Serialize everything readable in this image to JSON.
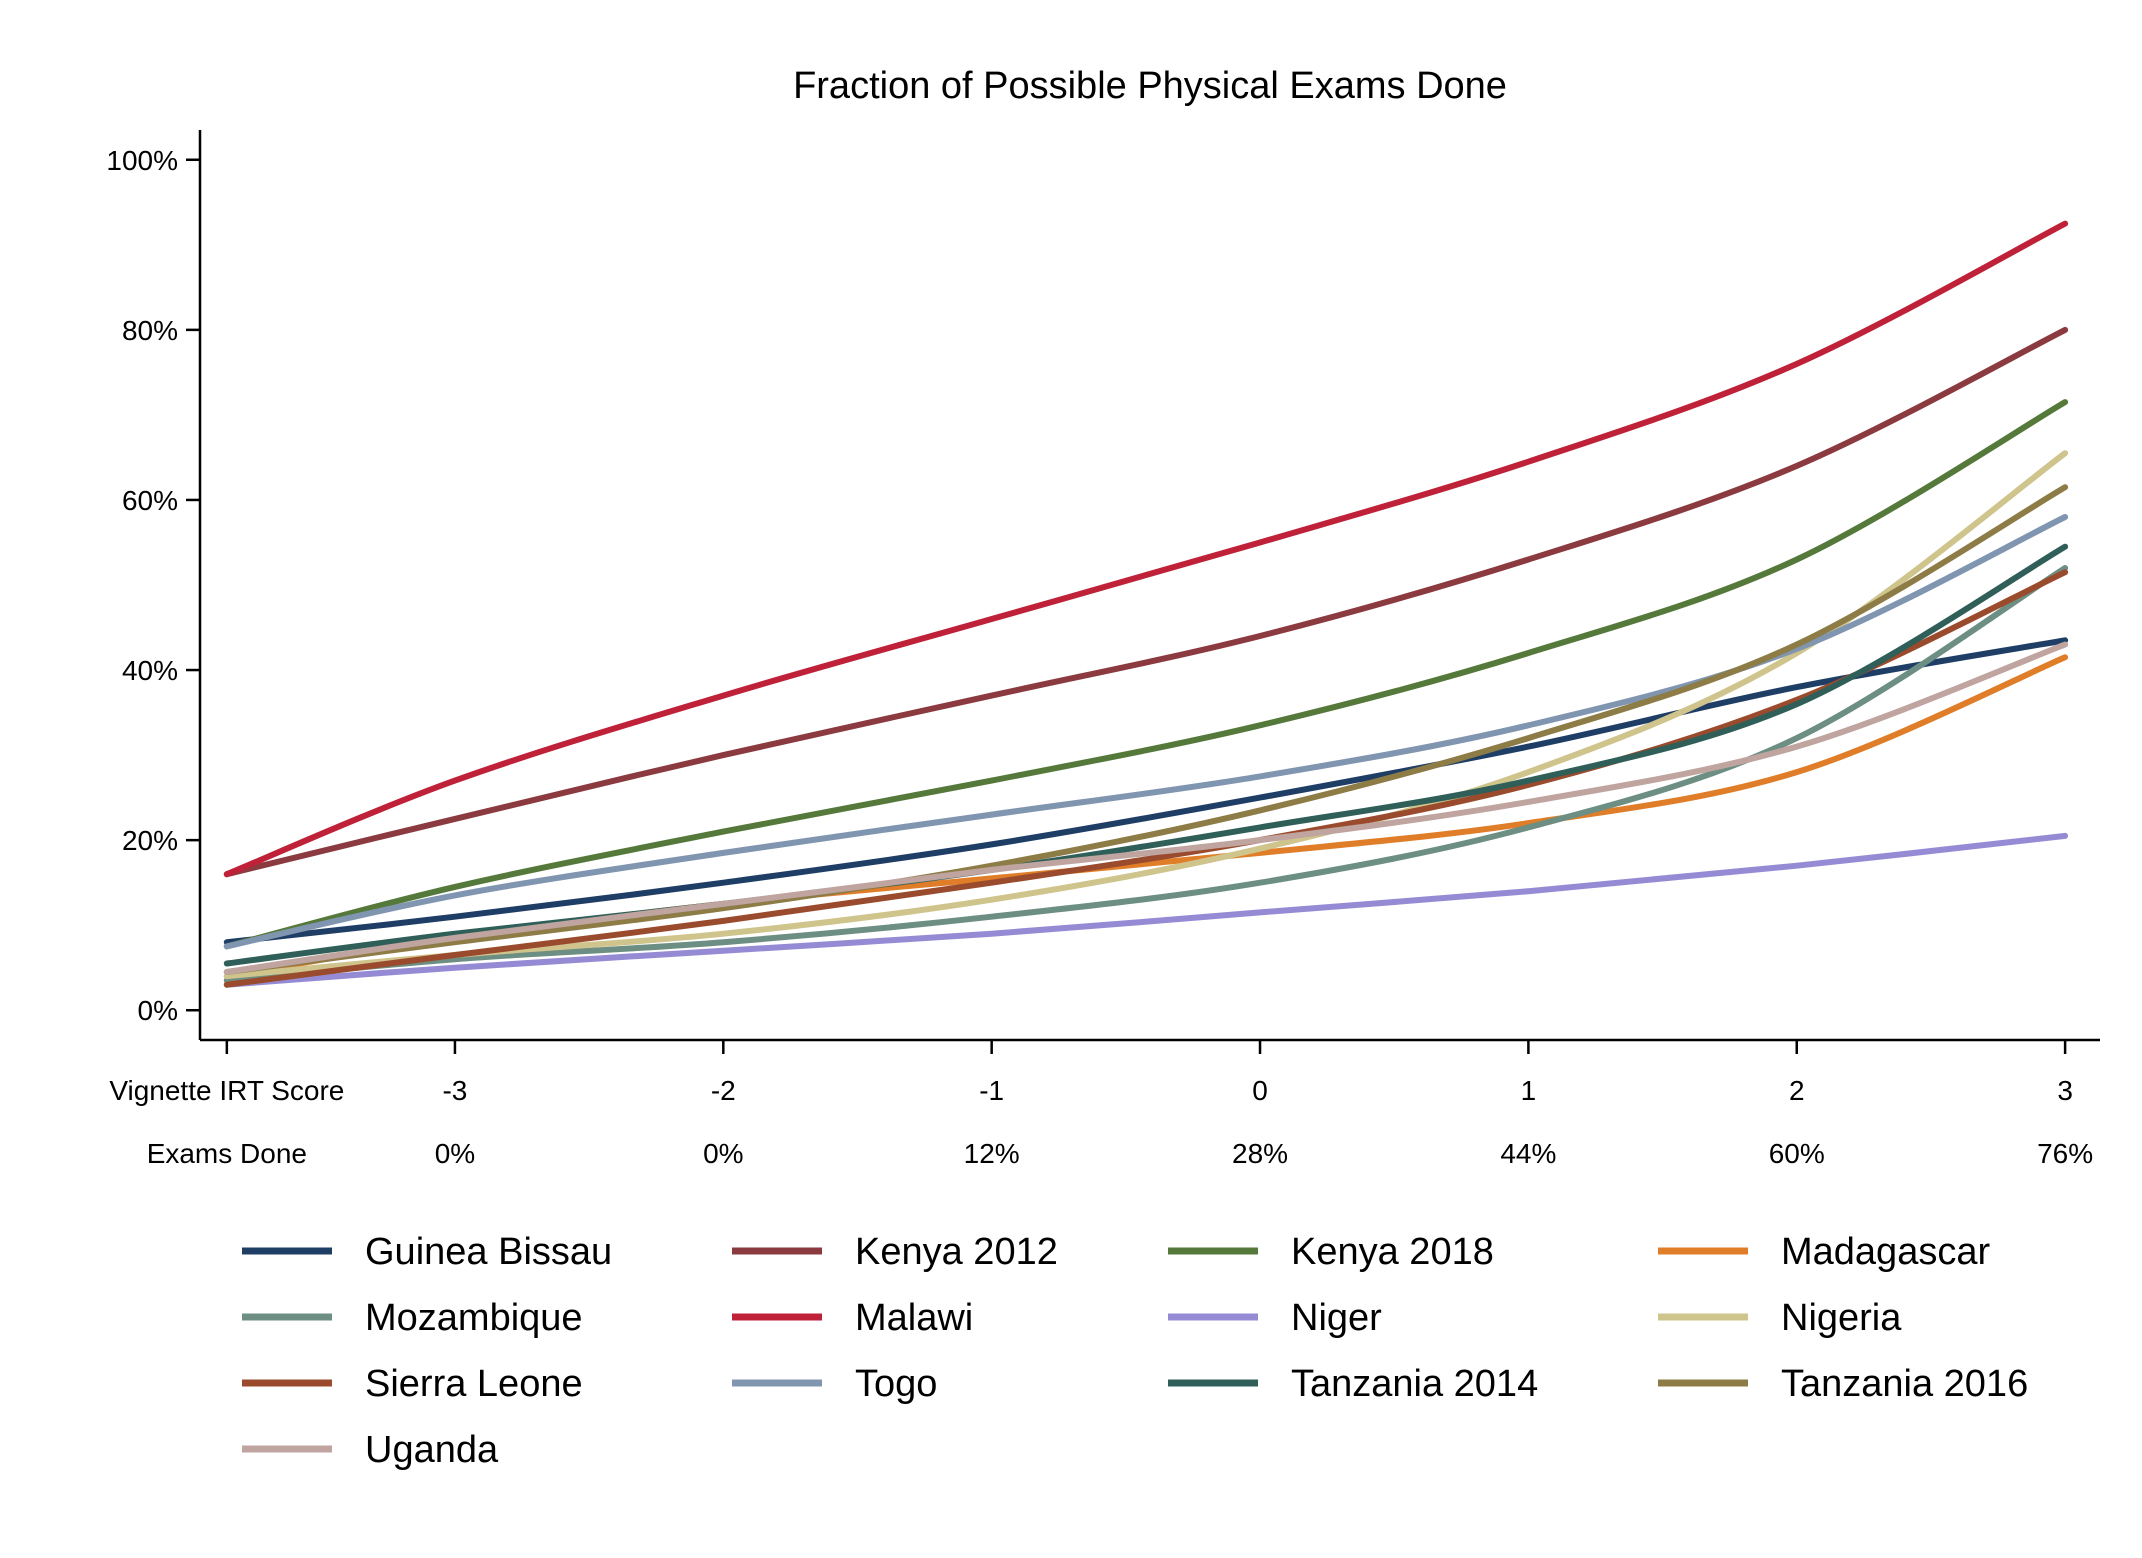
{
  "chart_data": {
    "type": "line",
    "title": "Fraction of Possible Physical Exams Done",
    "xlabel": "",
    "ylabel": "",
    "xlim": [
      -3.95,
      3.13
    ],
    "ylim": [
      -0.035,
      1.035
    ],
    "y_ticks": [
      {
        "value": 0.0,
        "label": "0%"
      },
      {
        "value": 0.2,
        "label": "20%"
      },
      {
        "value": 0.4,
        "label": "40%"
      },
      {
        "value": 0.6,
        "label": "60%"
      },
      {
        "value": 0.8,
        "label": "80%"
      },
      {
        "value": 1.0,
        "label": "100%"
      }
    ],
    "x_tick_positions": [
      -3.85,
      -3,
      -2,
      -1,
      0,
      1,
      2,
      3
    ],
    "x_rows": [
      {
        "label": "Vignette IRT Score",
        "values": [
          "-3",
          "-2",
          "-1",
          "0",
          "1",
          "2",
          "3"
        ]
      },
      {
        "label": "Exams Done",
        "values": [
          "0%",
          "0%",
          "12%",
          "28%",
          "44%",
          "60%",
          "76%"
        ]
      }
    ],
    "x": [
      -3.85,
      -3,
      -2,
      -1,
      0,
      1,
      2,
      3
    ],
    "series": [
      {
        "name": "Guinea Bissau",
        "color": "#1f3e66",
        "values": [
          0.08,
          0.11,
          0.15,
          0.195,
          0.25,
          0.31,
          0.38,
          0.435
        ]
      },
      {
        "name": "Kenya 2012",
        "color": "#8b3a3f",
        "values": [
          0.16,
          0.225,
          0.3,
          0.37,
          0.44,
          0.53,
          0.64,
          0.8
        ]
      },
      {
        "name": "Kenya 2018",
        "color": "#55793a",
        "values": [
          0.075,
          0.145,
          0.21,
          0.27,
          0.335,
          0.42,
          0.53,
          0.715
        ]
      },
      {
        "name": "Madagascar",
        "color": "#e07d28",
        "values": [
          0.04,
          0.085,
          0.125,
          0.155,
          0.185,
          0.22,
          0.28,
          0.415
        ]
      },
      {
        "name": "Mozambique",
        "color": "#6d8f83",
        "values": [
          0.035,
          0.06,
          0.08,
          0.11,
          0.15,
          0.215,
          0.32,
          0.52
        ]
      },
      {
        "name": "Malawi",
        "color": "#bf2238",
        "values": [
          0.16,
          0.27,
          0.37,
          0.46,
          0.55,
          0.645,
          0.76,
          0.925
        ]
      },
      {
        "name": "Niger",
        "color": "#948bd4",
        "values": [
          0.03,
          0.05,
          0.07,
          0.09,
          0.115,
          0.14,
          0.17,
          0.205
        ]
      },
      {
        "name": "Nigeria",
        "color": "#cfc48b",
        "values": [
          0.04,
          0.065,
          0.09,
          0.13,
          0.19,
          0.28,
          0.42,
          0.655
        ]
      },
      {
        "name": "Sierra Leone",
        "color": "#9b4b2d",
        "values": [
          0.03,
          0.065,
          0.105,
          0.15,
          0.2,
          0.265,
          0.365,
          0.515
        ]
      },
      {
        "name": "Togo",
        "color": "#8095b0",
        "values": [
          0.075,
          0.135,
          0.185,
          0.23,
          0.275,
          0.335,
          0.425,
          0.58
        ]
      },
      {
        "name": "Tanzania 2014",
        "color": "#2f5f58",
        "values": [
          0.055,
          0.09,
          0.125,
          0.165,
          0.215,
          0.27,
          0.36,
          0.545
        ]
      },
      {
        "name": "Tanzania 2016",
        "color": "#8d7c46",
        "values": [
          0.045,
          0.08,
          0.12,
          0.17,
          0.235,
          0.32,
          0.43,
          0.615
        ]
      },
      {
        "name": "Uganda",
        "color": "#bfa4a0",
        "values": [
          0.045,
          0.085,
          0.125,
          0.165,
          0.2,
          0.245,
          0.31,
          0.43
        ]
      }
    ],
    "legend": {
      "position": "bottom",
      "columns": 4
    }
  }
}
